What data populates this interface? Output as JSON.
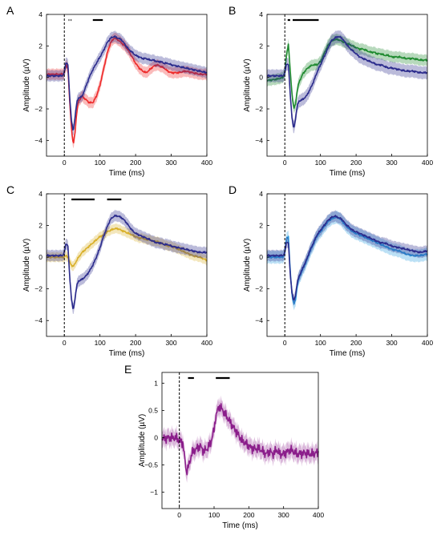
{
  "chart_data": [
    {
      "panel": "A",
      "type": "line",
      "xlabel": "Time (ms)",
      "ylabel": "Amplitude (µV)",
      "xlim": [
        -50,
        400
      ],
      "ylim": [
        -5,
        4
      ],
      "xticks": [
        0,
        100,
        200,
        300,
        400
      ],
      "yticks": [
        -4,
        -2,
        0,
        2,
        4
      ],
      "stimulus_line_x": 0,
      "sig_bars": [
        [
          12,
          14
        ],
        [
          18,
          20
        ],
        [
          80,
          108
        ]
      ],
      "series": [
        {
          "color": "#ee2a2a",
          "x": [
            -50,
            -20,
            -5,
            0,
            5,
            10,
            15,
            20,
            25,
            30,
            35,
            40,
            50,
            60,
            70,
            80,
            90,
            100,
            110,
            120,
            130,
            140,
            150,
            160,
            170,
            180,
            190,
            200,
            210,
            220,
            230,
            240,
            250,
            260,
            270,
            280,
            290,
            300,
            320,
            340,
            360,
            380,
            400
          ],
          "y": [
            0.2,
            0.2,
            0.2,
            0.3,
            0.8,
            0.6,
            -1.5,
            -3.2,
            -4.3,
            -3.5,
            -2.2,
            -1.5,
            -1.2,
            -1.4,
            -1.6,
            -1.6,
            -1.2,
            -0.5,
            0.5,
            1.5,
            2.2,
            2.5,
            2.4,
            2.2,
            2.0,
            1.7,
            1.3,
            0.9,
            0.6,
            0.4,
            0.3,
            0.5,
            0.7,
            0.8,
            0.7,
            0.6,
            0.4,
            0.3,
            0.3,
            0.4,
            0.3,
            0.2,
            0.2
          ],
          "band": 0.35
        },
        {
          "color": "#2b2b8c",
          "x": [
            -50,
            -20,
            -5,
            0,
            5,
            10,
            15,
            20,
            25,
            30,
            35,
            40,
            50,
            60,
            70,
            80,
            90,
            100,
            110,
            120,
            130,
            140,
            150,
            160,
            170,
            180,
            190,
            200,
            210,
            220,
            230,
            240,
            250,
            260,
            270,
            280,
            290,
            300,
            320,
            340,
            360,
            380,
            400
          ],
          "y": [
            0.1,
            0.1,
            0.1,
            0.3,
            1.0,
            0.8,
            -1.2,
            -2.7,
            -3.5,
            -2.5,
            -1.6,
            -1.3,
            -1.2,
            -0.6,
            0.0,
            0.5,
            0.9,
            1.3,
            1.7,
            2.2,
            2.5,
            2.6,
            2.5,
            2.4,
            2.1,
            1.8,
            1.6,
            1.4,
            1.3,
            1.2,
            1.2,
            1.1,
            1.1,
            1.0,
            1.0,
            0.9,
            0.9,
            0.8,
            0.7,
            0.6,
            0.5,
            0.4,
            0.3
          ],
          "band": 0.35
        }
      ]
    },
    {
      "panel": "B",
      "type": "line",
      "xlabel": "Time (ms)",
      "ylabel": "Amplitude (µV)",
      "xlim": [
        -50,
        400
      ],
      "ylim": [
        -5,
        4
      ],
      "xticks": [
        0,
        100,
        200,
        300,
        400
      ],
      "yticks": [
        -4,
        -2,
        0,
        2,
        4
      ],
      "stimulus_line_x": 0,
      "sig_bars": [
        [
          8,
          15
        ],
        [
          22,
          95
        ]
      ],
      "series": [
        {
          "color": "#1e8a2f",
          "x": [
            -50,
            -20,
            -5,
            0,
            5,
            10,
            15,
            20,
            25,
            30,
            35,
            40,
            50,
            60,
            70,
            80,
            90,
            100,
            110,
            120,
            130,
            140,
            150,
            160,
            170,
            180,
            190,
            200,
            210,
            220,
            230,
            240,
            250,
            260,
            270,
            280,
            290,
            300,
            320,
            340,
            360,
            380,
            400
          ],
          "y": [
            -0.2,
            -0.1,
            0.0,
            0.3,
            1.5,
            2.1,
            0.5,
            -1.0,
            -2.0,
            -1.7,
            -0.8,
            -0.3,
            0.2,
            0.5,
            0.7,
            0.8,
            0.8,
            1.0,
            1.5,
            2.0,
            2.3,
            2.4,
            2.4,
            2.3,
            2.2,
            2.1,
            2.0,
            1.9,
            1.8,
            1.8,
            1.7,
            1.6,
            1.6,
            1.5,
            1.5,
            1.4,
            1.4,
            1.3,
            1.3,
            1.2,
            1.2,
            1.1,
            1.1
          ],
          "band": 0.35
        },
        {
          "color": "#2b2b8c",
          "x": [
            -50,
            -20,
            -5,
            0,
            5,
            10,
            15,
            20,
            25,
            30,
            35,
            40,
            50,
            60,
            70,
            80,
            90,
            100,
            110,
            120,
            130,
            140,
            150,
            160,
            170,
            180,
            190,
            200,
            210,
            220,
            230,
            240,
            250,
            260,
            270,
            280,
            290,
            300,
            320,
            340,
            360,
            380,
            400
          ],
          "y": [
            0.1,
            0.1,
            0.1,
            0.3,
            0.9,
            0.8,
            -1.0,
            -2.5,
            -3.3,
            -2.6,
            -1.8,
            -1.5,
            -1.4,
            -1.2,
            -0.8,
            -0.3,
            0.3,
            0.8,
            1.3,
            1.8,
            2.3,
            2.5,
            2.6,
            2.5,
            2.2,
            1.9,
            1.7,
            1.5,
            1.3,
            1.2,
            1.1,
            1.0,
            0.9,
            0.8,
            0.8,
            0.7,
            0.6,
            0.6,
            0.5,
            0.4,
            0.4,
            0.3,
            0.3
          ],
          "band": 0.4
        }
      ]
    },
    {
      "panel": "C",
      "type": "line",
      "xlabel": "Time (ms)",
      "ylabel": "Amplitude (µV)",
      "xlim": [
        -50,
        400
      ],
      "ylim": [
        -5,
        4
      ],
      "xticks": [
        0,
        100,
        200,
        300,
        400
      ],
      "yticks": [
        -4,
        -2,
        0,
        2,
        4
      ],
      "stimulus_line_x": 0,
      "sig_bars": [
        [
          20,
          85
        ],
        [
          120,
          160
        ]
      ],
      "series": [
        {
          "color": "#d9b02a",
          "x": [
            -50,
            -20,
            -5,
            0,
            5,
            10,
            15,
            20,
            25,
            30,
            35,
            40,
            50,
            60,
            70,
            80,
            90,
            100,
            110,
            120,
            130,
            140,
            150,
            160,
            170,
            180,
            190,
            200,
            210,
            220,
            230,
            240,
            250,
            260,
            270,
            280,
            290,
            300,
            320,
            340,
            360,
            380,
            400
          ],
          "y": [
            0.0,
            0.0,
            0.0,
            0.0,
            0.1,
            0.0,
            -0.3,
            -0.5,
            -0.6,
            -0.4,
            -0.2,
            0.0,
            0.3,
            0.5,
            0.7,
            0.9,
            1.1,
            1.3,
            1.4,
            1.6,
            1.7,
            1.8,
            1.8,
            1.7,
            1.6,
            1.5,
            1.4,
            1.3,
            1.2,
            1.2,
            1.1,
            1.1,
            1.0,
            1.0,
            0.9,
            0.8,
            0.7,
            0.7,
            0.5,
            0.3,
            0.1,
            0.0,
            -0.2
          ],
          "band": 0.3
        },
        {
          "color": "#2b2b8c",
          "x": [
            -50,
            -20,
            -5,
            0,
            5,
            10,
            15,
            20,
            25,
            30,
            35,
            40,
            50,
            60,
            70,
            80,
            90,
            100,
            110,
            120,
            130,
            140,
            150,
            160,
            170,
            180,
            190,
            200,
            210,
            220,
            230,
            240,
            250,
            260,
            270,
            280,
            290,
            300,
            320,
            340,
            360,
            380,
            400
          ],
          "y": [
            0.1,
            0.1,
            0.1,
            0.3,
            0.9,
            0.7,
            -1.2,
            -2.6,
            -3.4,
            -2.6,
            -1.8,
            -1.5,
            -1.4,
            -1.2,
            -0.9,
            -0.5,
            0.0,
            0.6,
            1.3,
            1.9,
            2.4,
            2.6,
            2.6,
            2.5,
            2.3,
            2.0,
            1.7,
            1.5,
            1.4,
            1.3,
            1.2,
            1.1,
            1.0,
            0.9,
            0.9,
            0.8,
            0.8,
            0.7,
            0.6,
            0.5,
            0.4,
            0.3,
            0.3
          ],
          "band": 0.35
        }
      ]
    },
    {
      "panel": "D",
      "type": "line",
      "xlabel": "Time (ms)",
      "ylabel": "Amplitude (µV)",
      "xlim": [
        -50,
        400
      ],
      "ylim": [
        -5,
        4
      ],
      "xticks": [
        0,
        100,
        200,
        300,
        400
      ],
      "yticks": [
        -4,
        -2,
        0,
        2,
        4
      ],
      "stimulus_line_x": 0,
      "sig_bars": [],
      "series": [
        {
          "color": "#2aa0e0",
          "x": [
            -50,
            -20,
            -5,
            0,
            5,
            10,
            15,
            20,
            25,
            30,
            35,
            40,
            50,
            60,
            70,
            80,
            90,
            100,
            110,
            120,
            130,
            140,
            150,
            160,
            170,
            180,
            190,
            200,
            210,
            220,
            230,
            240,
            250,
            260,
            270,
            280,
            290,
            300,
            320,
            340,
            360,
            380,
            400
          ],
          "y": [
            0.0,
            0.0,
            0.0,
            0.3,
            1.2,
            1.3,
            -0.8,
            -2.3,
            -3.0,
            -2.7,
            -1.8,
            -1.3,
            -0.8,
            -0.3,
            0.3,
            0.8,
            1.3,
            1.6,
            1.9,
            2.2,
            2.4,
            2.5,
            2.5,
            2.3,
            2.0,
            1.8,
            1.6,
            1.5,
            1.4,
            1.3,
            1.2,
            1.1,
            1.0,
            0.9,
            0.8,
            0.7,
            0.6,
            0.5,
            0.4,
            0.2,
            0.1,
            0.1,
            0.2
          ],
          "band": 0.4
        },
        {
          "color": "#2b2b8c",
          "x": [
            -50,
            -20,
            -5,
            0,
            5,
            10,
            15,
            20,
            25,
            30,
            35,
            40,
            50,
            60,
            70,
            80,
            90,
            100,
            110,
            120,
            130,
            140,
            150,
            160,
            170,
            180,
            190,
            200,
            210,
            220,
            230,
            240,
            250,
            260,
            270,
            280,
            290,
            300,
            320,
            340,
            360,
            380,
            400
          ],
          "y": [
            0.1,
            0.1,
            0.1,
            0.3,
            1.0,
            0.9,
            -1.0,
            -2.2,
            -2.8,
            -2.4,
            -1.6,
            -1.2,
            -0.7,
            -0.2,
            0.4,
            0.9,
            1.4,
            1.7,
            2.0,
            2.3,
            2.5,
            2.6,
            2.5,
            2.4,
            2.1,
            1.9,
            1.7,
            1.6,
            1.5,
            1.4,
            1.3,
            1.2,
            1.1,
            1.0,
            0.9,
            0.9,
            0.8,
            0.7,
            0.6,
            0.5,
            0.4,
            0.3,
            0.4
          ],
          "band": 0.35
        }
      ]
    },
    {
      "panel": "E",
      "type": "line",
      "xlabel": "Time (ms)",
      "ylabel": "Amplitude (µV)",
      "xlim": [
        -50,
        400
      ],
      "ylim": [
        -1.3,
        1.2
      ],
      "xticks": [
        0,
        100,
        200,
        300,
        400
      ],
      "yticks": [
        -1,
        -0.5,
        0,
        0.5,
        1
      ],
      "stimulus_line_x": 0,
      "sig_bars": [
        [
          25,
          42
        ],
        [
          105,
          145
        ]
      ],
      "series": [
        {
          "color": "#8b1e8b",
          "x": [
            -50,
            -30,
            -10,
            0,
            10,
            15,
            20,
            25,
            30,
            35,
            40,
            50,
            60,
            70,
            80,
            90,
            100,
            105,
            110,
            115,
            120,
            130,
            140,
            150,
            160,
            170,
            180,
            190,
            200,
            210,
            220,
            230,
            240,
            250,
            260,
            270,
            280,
            290,
            300,
            320,
            340,
            360,
            380,
            400
          ],
          "y": [
            -0.02,
            0.0,
            0.0,
            -0.05,
            -0.1,
            -0.35,
            -0.62,
            -0.55,
            -0.45,
            -0.3,
            -0.25,
            -0.2,
            -0.15,
            -0.25,
            -0.2,
            -0.1,
            0.15,
            0.4,
            0.5,
            0.58,
            0.55,
            0.45,
            0.35,
            0.25,
            0.15,
            0.05,
            -0.05,
            -0.1,
            -0.15,
            -0.2,
            -0.2,
            -0.2,
            -0.25,
            -0.3,
            -0.25,
            -0.3,
            -0.22,
            -0.3,
            -0.3,
            -0.22,
            -0.3,
            -0.28,
            -0.3,
            -0.27
          ],
          "band": 0.15
        }
      ]
    }
  ]
}
